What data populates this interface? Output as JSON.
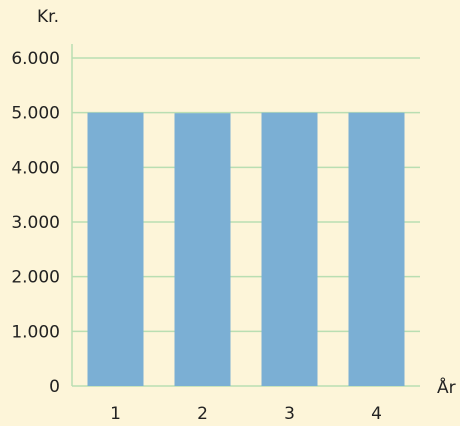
{
  "chart_data": {
    "type": "bar",
    "categories": [
      "1",
      "2",
      "3",
      "4"
    ],
    "values": [
      5000,
      4990,
      5000,
      5000
    ],
    "y_ticks": [
      "0",
      "1.000",
      "2.000",
      "3.000",
      "4.000",
      "5.000",
      "6.000"
    ],
    "y_tick_values": [
      0,
      1000,
      2000,
      3000,
      4000,
      5000,
      6000
    ],
    "ylim": [
      0,
      6000
    ],
    "ylabel": "Kr.",
    "xlabel": "År",
    "grid": true,
    "bar_color": "#7bafd4",
    "grid_color": "#b9deb2",
    "background": "#fdf5d9"
  }
}
